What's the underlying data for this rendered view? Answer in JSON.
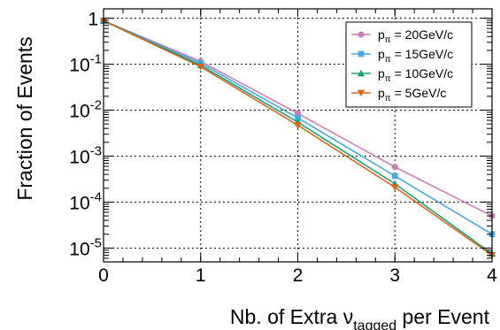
{
  "chart_data": {
    "type": "line",
    "xlabel": "Nb. of Extra ν_tagged per Event",
    "xlabel_parts": {
      "prefix": "Nb. of Extra ",
      "symbol": "ν",
      "subscript": "tagged",
      "suffix": " per Event"
    },
    "ylabel": "Fraction of Events",
    "x": [
      0,
      1,
      2,
      3,
      4
    ],
    "xlim": [
      0,
      4
    ],
    "ylim": [
      5e-06,
      1.6
    ],
    "yscale": "log",
    "grid": true,
    "legend_position": "top-right",
    "x_ticks": [
      "0",
      "1",
      "2",
      "3",
      "4"
    ],
    "y_ticks": [
      {
        "value": 1,
        "base": "1",
        "exp": ""
      },
      {
        "value": 0.1,
        "base": "10",
        "exp": "-1"
      },
      {
        "value": 0.01,
        "base": "10",
        "exp": "-2"
      },
      {
        "value": 0.001,
        "base": "10",
        "exp": "-3"
      },
      {
        "value": 0.0001,
        "base": "10",
        "exp": "-4"
      },
      {
        "value": 1e-05,
        "base": "10",
        "exp": "-5"
      }
    ],
    "series": [
      {
        "name": "p_π = 20GeV/c",
        "label_base": "p",
        "label_sub": "π",
        "label_rest": " = 20GeV/c",
        "color": "#c97fb4",
        "marker": "circle",
        "values": [
          0.88,
          0.115,
          0.0085,
          0.00058,
          5e-05
        ]
      },
      {
        "name": "p_π = 15GeV/c",
        "label_base": "p",
        "label_sub": "π",
        "label_rest": " = 15GeV/c",
        "color": "#4aa8de",
        "marker": "square",
        "values": [
          0.88,
          0.105,
          0.0068,
          0.00037,
          2e-05
        ]
      },
      {
        "name": "p_π = 10GeV/c",
        "label_base": "p",
        "label_sub": "π",
        "label_rest": " = 10GeV/c",
        "color": "#1e9e78",
        "marker": "triangle-up",
        "values": [
          0.88,
          0.095,
          0.0055,
          0.00025,
          7.5e-06
        ]
      },
      {
        "name": "p_π = 5GeV/c",
        "label_base": "p",
        "label_sub": "π",
        "label_rest": " = 5GeV/c",
        "color": "#d2691e",
        "marker": "triangle-down",
        "values": [
          0.88,
          0.088,
          0.0047,
          0.00021,
          7e-06
        ]
      }
    ]
  }
}
